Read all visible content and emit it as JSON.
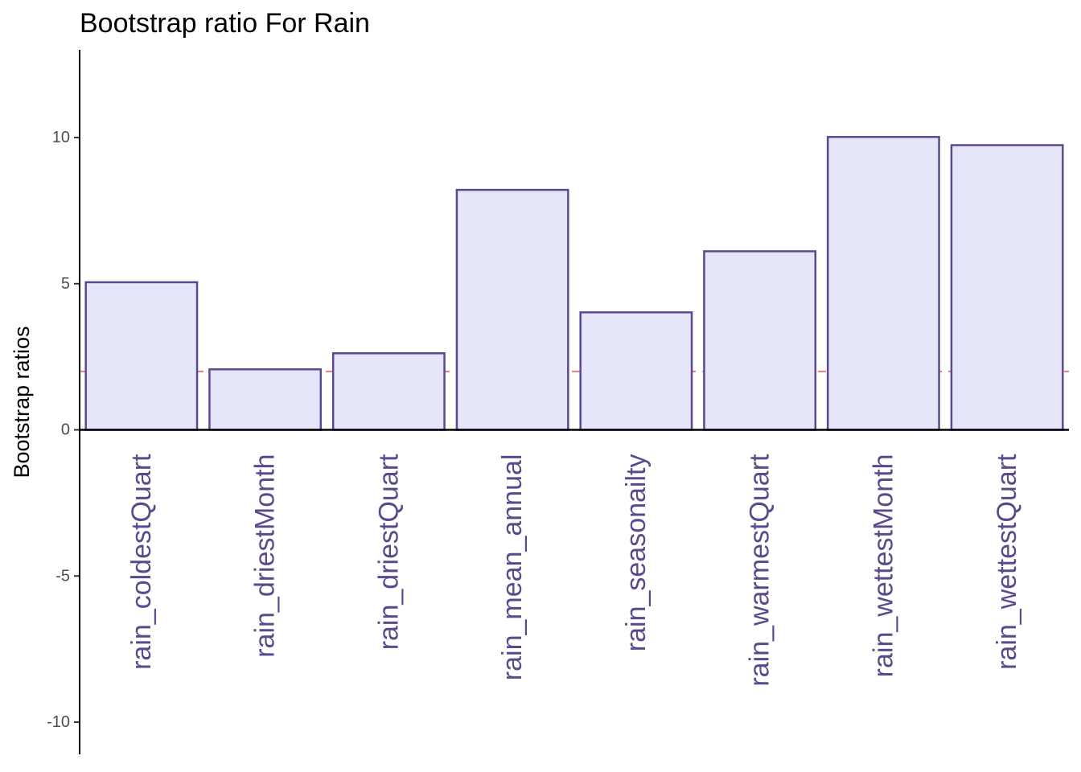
{
  "chart_data": {
    "type": "bar",
    "title": "Bootstrap ratio For Rain",
    "xlabel": "",
    "ylabel": "Bootstrap ratios",
    "categories": [
      "rain_coldestQuart",
      "rain_driestMonth",
      "rain_driestQuart",
      "rain_mean_annual",
      "rain_seasonailty",
      "rain_warmestQuart",
      "rain_wettestMonth",
      "rain_wettestQuart"
    ],
    "values": [
      5.05,
      2.07,
      2.62,
      8.21,
      4.02,
      6.11,
      10.02,
      9.74
    ],
    "ylim": [
      -11.1,
      13
    ],
    "yticks": [
      -10,
      -5,
      0,
      5,
      10
    ],
    "ytick_labels": [
      "-10",
      "-5",
      "0",
      "5",
      "10"
    ],
    "threshold": 2,
    "grid": false,
    "colors": {
      "bar_fill": "#e6e6fa",
      "bar_stroke": "#5b4a8b",
      "category_label": "#5b4a8b",
      "threshold_line": "#e8807d",
      "axis": "#000000"
    }
  }
}
